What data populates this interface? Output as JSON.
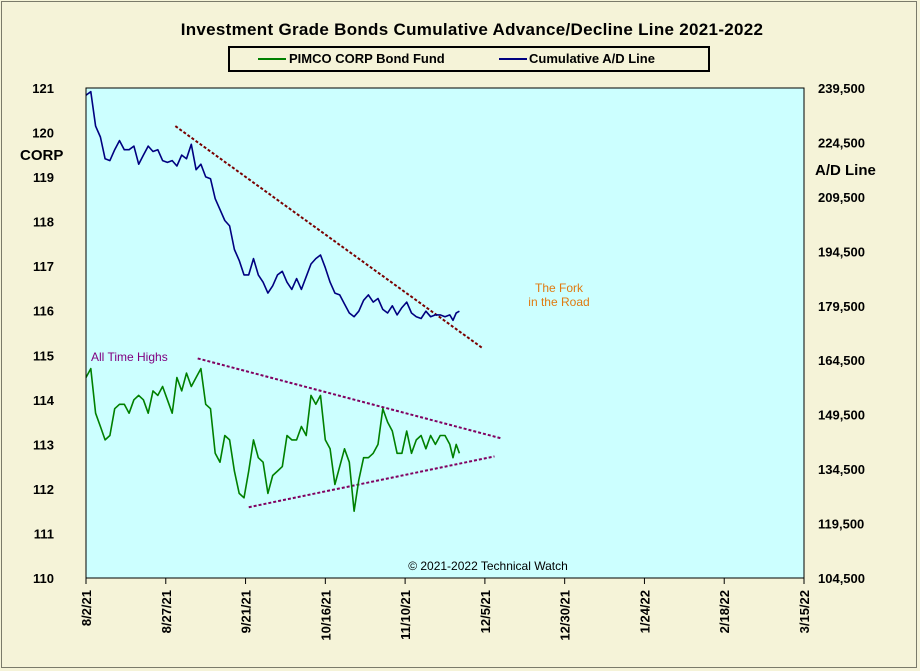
{
  "chart_data": {
    "type": "line",
    "title": "Investment  Grade Bonds Cumulative  Advance/Decline  Line 2021-2022",
    "legend_placement": "top-center",
    "x_tick_labels": [
      "8/2/21",
      "8/27/21",
      "9/21/21",
      "10/16/21",
      "11/10/21",
      "12/5/21",
      "12/30/21",
      "1/24/22",
      "2/18/22",
      "3/15/22"
    ],
    "left_axis": {
      "label": "CORP",
      "range": [
        110,
        121
      ],
      "ticks": [
        "110",
        "111",
        "112",
        "113",
        "114",
        "115",
        "116",
        "117",
        "118",
        "119",
        "120",
        "121"
      ]
    },
    "right_axis": {
      "label": "A/D Line",
      "range": [
        104500,
        239500
      ],
      "ticks": [
        "104,500",
        "119,500",
        "134,500",
        "149,500",
        "164,500",
        "179,500",
        "194,500",
        "209,500",
        "224,500",
        "239,500"
      ]
    },
    "series": [
      {
        "name": "PIMCO CORP Bond Fund",
        "axis": "left",
        "color": "#008000",
        "points": [
          [
            0,
            114.5
          ],
          [
            1.5,
            114.7
          ],
          [
            3,
            113.7
          ],
          [
            4.5,
            113.4
          ],
          [
            6,
            113.1
          ],
          [
            7.5,
            113.2
          ],
          [
            9,
            113.8
          ],
          [
            10.5,
            113.9
          ],
          [
            12,
            113.9
          ],
          [
            13.5,
            113.7
          ],
          [
            15,
            114.0
          ],
          [
            16.5,
            114.1
          ],
          [
            18,
            114.0
          ],
          [
            19.5,
            113.7
          ],
          [
            21,
            114.2
          ],
          [
            22.5,
            114.1
          ],
          [
            24,
            114.3
          ],
          [
            25.5,
            114.0
          ],
          [
            27,
            113.7
          ],
          [
            28.5,
            114.5
          ],
          [
            30,
            114.2
          ],
          [
            31.5,
            114.6
          ],
          [
            33,
            114.3
          ],
          [
            34.5,
            114.5
          ],
          [
            36,
            114.7
          ],
          [
            37.5,
            113.9
          ],
          [
            39,
            113.8
          ],
          [
            40.5,
            112.8
          ],
          [
            42,
            112.6
          ],
          [
            43.5,
            113.2
          ],
          [
            45,
            113.1
          ],
          [
            46.5,
            112.4
          ],
          [
            48,
            111.9
          ],
          [
            49.5,
            111.8
          ],
          [
            51,
            112.4
          ],
          [
            52.5,
            113.1
          ],
          [
            54,
            112.7
          ],
          [
            55.5,
            112.6
          ],
          [
            57,
            111.9
          ],
          [
            58.5,
            112.3
          ],
          [
            60,
            112.4
          ],
          [
            61.5,
            112.5
          ],
          [
            63,
            113.2
          ],
          [
            64.5,
            113.1
          ],
          [
            66,
            113.1
          ],
          [
            67.5,
            113.4
          ],
          [
            69,
            113.2
          ],
          [
            70.5,
            114.1
          ],
          [
            72,
            113.9
          ],
          [
            73.5,
            114.1
          ],
          [
            75,
            113.1
          ],
          [
            76.5,
            112.9
          ],
          [
            78,
            112.1
          ],
          [
            79.5,
            112.5
          ],
          [
            81,
            112.9
          ],
          [
            82.5,
            112.6
          ],
          [
            84,
            111.5
          ],
          [
            85.5,
            112.2
          ],
          [
            87,
            112.7
          ],
          [
            88.5,
            112.7
          ],
          [
            90,
            112.8
          ],
          [
            91.5,
            113.0
          ],
          [
            93,
            113.8
          ],
          [
            94.5,
            113.5
          ],
          [
            96,
            113.3
          ],
          [
            97.5,
            112.8
          ],
          [
            99,
            112.8
          ],
          [
            100.5,
            113.3
          ],
          [
            102,
            112.8
          ],
          [
            103.5,
            113.1
          ],
          [
            105,
            113.2
          ],
          [
            106.5,
            112.9
          ],
          [
            108,
            113.2
          ],
          [
            109.5,
            113.0
          ],
          [
            111,
            113.2
          ],
          [
            112.5,
            113.2
          ],
          [
            114,
            113.0
          ],
          [
            115,
            112.7
          ],
          [
            116,
            113.0
          ],
          [
            117,
            112.8
          ]
        ]
      },
      {
        "name": "Cumulative A/D Line",
        "axis": "right",
        "color": "#000080",
        "points": [
          [
            0,
            237500
          ],
          [
            1.5,
            238500
          ],
          [
            3,
            229000
          ],
          [
            4.5,
            226000
          ],
          [
            6,
            220000
          ],
          [
            7.5,
            219500
          ],
          [
            9,
            222500
          ],
          [
            10.5,
            225000
          ],
          [
            12,
            222500
          ],
          [
            13.5,
            222500
          ],
          [
            15,
            223500
          ],
          [
            16.5,
            218500
          ],
          [
            18,
            221000
          ],
          [
            19.5,
            223500
          ],
          [
            21,
            222000
          ],
          [
            22.5,
            222500
          ],
          [
            24,
            219500
          ],
          [
            25.5,
            219000
          ],
          [
            27,
            219500
          ],
          [
            28.5,
            218000
          ],
          [
            30,
            221000
          ],
          [
            31.5,
            220000
          ],
          [
            33,
            224000
          ],
          [
            34.5,
            217000
          ],
          [
            36,
            218500
          ],
          [
            37.5,
            215000
          ],
          [
            39,
            214500
          ],
          [
            40.5,
            209000
          ],
          [
            42,
            206000
          ],
          [
            43.5,
            203000
          ],
          [
            45,
            201500
          ],
          [
            46.5,
            195000
          ],
          [
            48,
            192000
          ],
          [
            49.5,
            188000
          ],
          [
            51,
            188000
          ],
          [
            52.5,
            192500
          ],
          [
            54,
            188000
          ],
          [
            55.5,
            186000
          ],
          [
            57,
            183000
          ],
          [
            58.5,
            185000
          ],
          [
            60,
            188000
          ],
          [
            61.5,
            189000
          ],
          [
            63,
            186000
          ],
          [
            64.5,
            184000
          ],
          [
            66,
            187000
          ],
          [
            67.5,
            184000
          ],
          [
            69,
            187500
          ],
          [
            70.5,
            191000
          ],
          [
            72,
            192500
          ],
          [
            73.5,
            193500
          ],
          [
            75,
            190000
          ],
          [
            76.5,
            186000
          ],
          [
            78,
            183000
          ],
          [
            79.5,
            182500
          ],
          [
            81,
            180000
          ],
          [
            82.5,
            177500
          ],
          [
            84,
            176500
          ],
          [
            85.5,
            178000
          ],
          [
            87,
            181000
          ],
          [
            88.5,
            182500
          ],
          [
            90,
            180500
          ],
          [
            91.5,
            181500
          ],
          [
            93,
            178500
          ],
          [
            94.5,
            177500
          ],
          [
            96,
            179500
          ],
          [
            97.5,
            177000
          ],
          [
            99,
            179000
          ],
          [
            100.5,
            180500
          ],
          [
            102,
            177500
          ],
          [
            103.5,
            176500
          ],
          [
            105,
            176000
          ],
          [
            106.5,
            178000
          ],
          [
            108,
            176500
          ],
          [
            109.5,
            177000
          ],
          [
            111,
            177000
          ],
          [
            112.5,
            176500
          ],
          [
            114,
            177000
          ],
          [
            115,
            175500
          ],
          [
            116,
            177500
          ],
          [
            117,
            178000
          ]
        ]
      }
    ],
    "trendlines": [
      {
        "axis": "right",
        "color": "#7a0000",
        "from": [
          28,
          229000
        ],
        "to": [
          124,
          168000
        ]
      },
      {
        "axis": "right",
        "color": "#800060",
        "from": [
          35,
          165000
        ],
        "to": [
          130,
          143000
        ]
      },
      {
        "axis": "right",
        "color": "#800060",
        "from": [
          51,
          124000
        ],
        "to": [
          128,
          138000
        ]
      }
    ],
    "annotations": [
      {
        "text": "All Time Highs",
        "color": "#800080"
      },
      {
        "text": "The Fork",
        "color": "#e07a10"
      },
      {
        "text": "in the Road",
        "color": "#e07a10"
      },
      {
        "text": "© 2021-2022  Technical  Watch",
        "color": "#000000"
      }
    ],
    "grid": false
  }
}
